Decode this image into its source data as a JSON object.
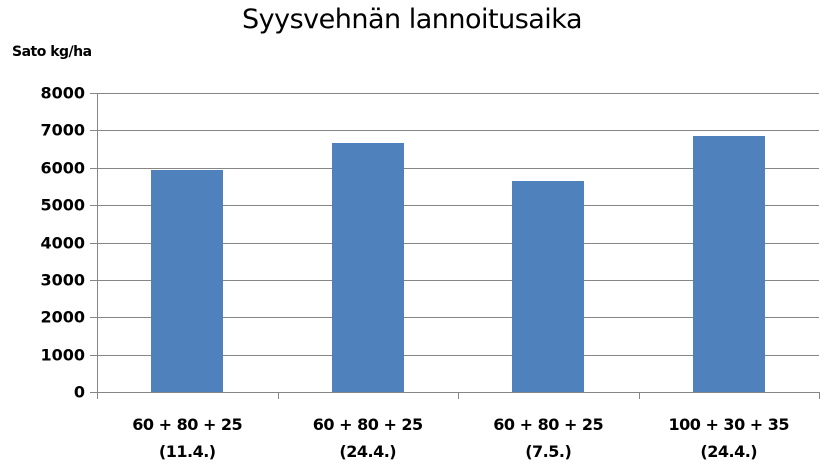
{
  "chart_data": {
    "type": "bar",
    "title": "Syysvehnän lannoitusaika",
    "ylabel": "Sato kg/ha",
    "xlabel": "",
    "ylim": [
      0,
      8000
    ],
    "yticks": [
      "8000",
      "7000",
      "6000",
      "5000",
      "4000",
      "3000",
      "2000",
      "1000",
      "0"
    ],
    "grid": true,
    "legend": "none",
    "bar_color": "#4f81bd",
    "categories": [
      {
        "line1": "60 + 80 + 25",
        "line2": "(11.4.)"
      },
      {
        "line1": "60 + 80 + 25",
        "line2": "(24.4.)"
      },
      {
        "line1": "60 + 80 + 25",
        "line2": "(7.5.)"
      },
      {
        "line1": "100 + 30 + 35",
        "line2": "(24.4.)"
      }
    ],
    "values": [
      5940,
      6660,
      5640,
      6850
    ]
  }
}
